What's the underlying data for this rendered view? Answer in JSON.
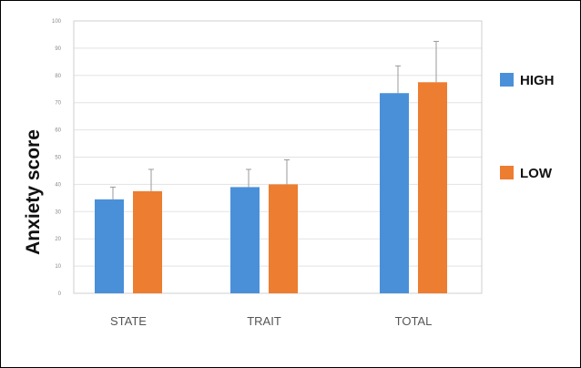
{
  "chart_data": {
    "type": "bar",
    "categories": [
      "STATE",
      "TRAIT",
      "TOTAL"
    ],
    "series": [
      {
        "name": "HIGH",
        "color": "#4a90d9",
        "values": [
          34.5,
          39,
          73.5
        ],
        "errors": [
          4.5,
          6.5,
          10
        ]
      },
      {
        "name": "LOW",
        "color": "#ed7d31",
        "values": [
          37.5,
          40,
          77.5
        ],
        "errors": [
          8,
          9,
          15
        ]
      }
    ],
    "title": "",
    "xlabel": "",
    "ylabel": "Anxiety score",
    "ylim": [
      0,
      100
    ],
    "yticks": [
      0,
      10,
      20,
      30,
      40,
      50,
      60,
      70,
      80,
      90,
      100
    ],
    "grid": true,
    "legend_position": "right"
  }
}
